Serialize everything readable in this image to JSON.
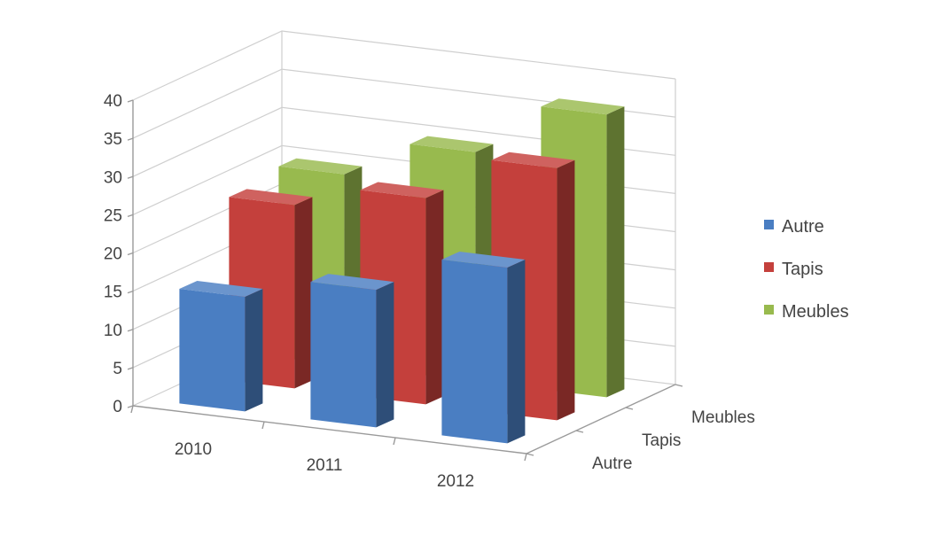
{
  "chart_data": {
    "type": "bar",
    "variant": "3d-column",
    "title": "",
    "xlabel": "",
    "ylabel": "",
    "categories": [
      "2010",
      "2011",
      "2012"
    ],
    "series": [
      {
        "name": "Autre",
        "values": [
          15,
          18,
          23
        ],
        "color": "#4A7EC2"
      },
      {
        "name": "Tapis",
        "values": [
          24,
          27,
          33
        ],
        "color": "#C4403C"
      },
      {
        "name": "Meubles",
        "values": [
          25,
          30,
          37
        ],
        "color": "#98BA4E"
      }
    ],
    "depth_labels": [
      "Autre",
      "Tapis",
      "Meubles"
    ],
    "ylim": [
      0,
      40
    ],
    "yticks": [
      0,
      5,
      10,
      15,
      20,
      25,
      30,
      35,
      40
    ],
    "grid": true,
    "legend": {
      "position": "right",
      "entries": [
        "Autre",
        "Tapis",
        "Meubles"
      ]
    }
  }
}
